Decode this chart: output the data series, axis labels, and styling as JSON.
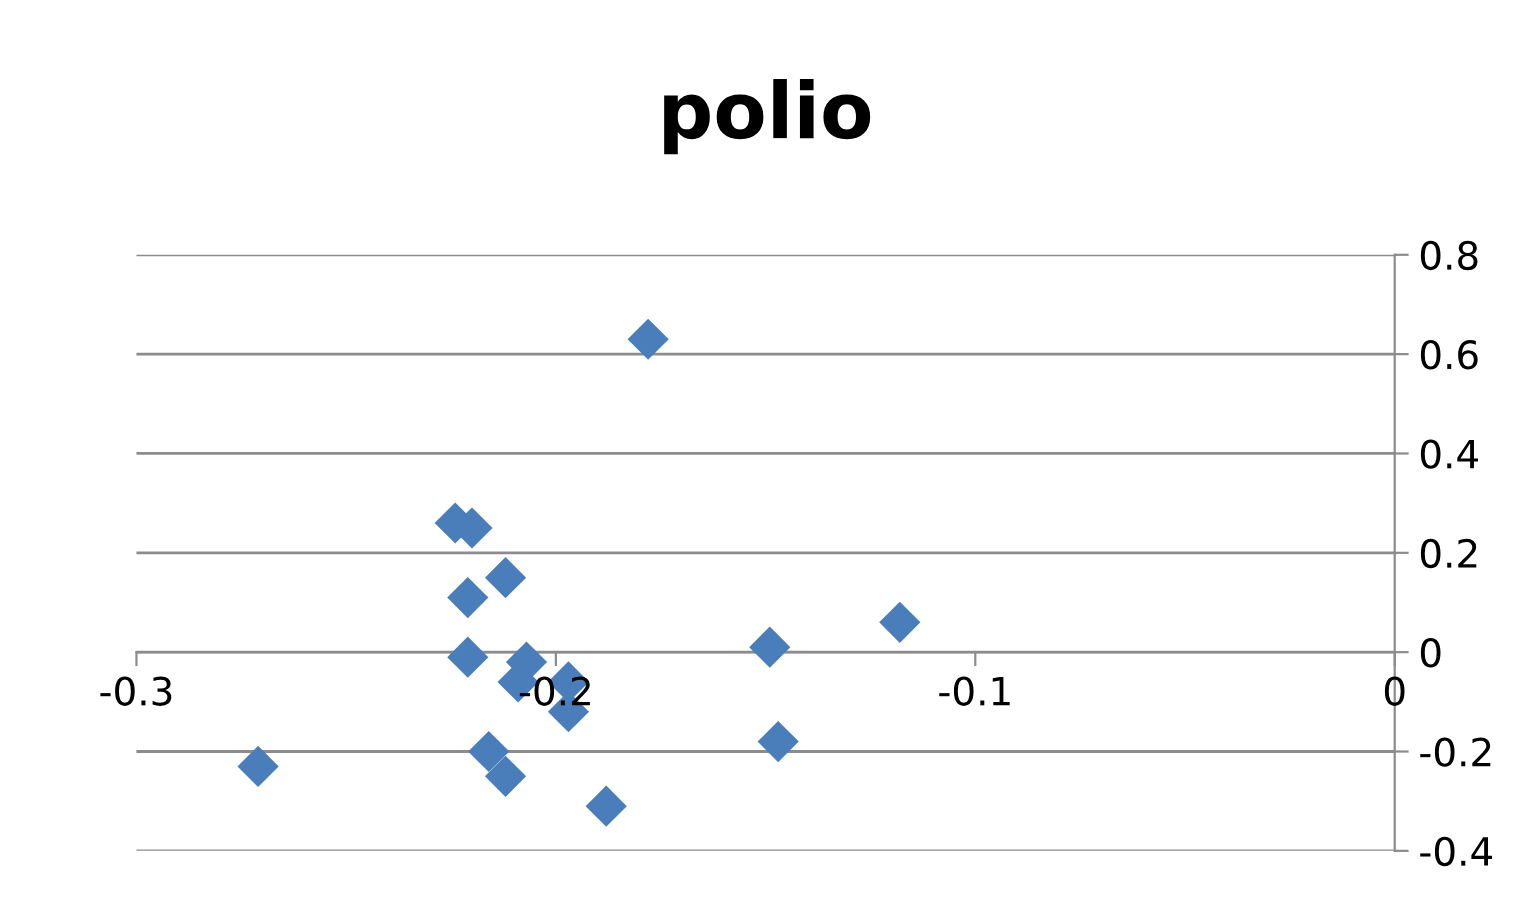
{
  "chart_data": {
    "type": "scatter",
    "title": "polio",
    "x": [
      -0.271,
      -0.178,
      -0.224,
      -0.22,
      -0.221,
      -0.212,
      -0.221,
      -0.207,
      -0.209,
      -0.197,
      -0.197,
      -0.216,
      -0.212,
      -0.188,
      -0.149,
      -0.147,
      -0.118
    ],
    "values": [
      -0.23,
      0.63,
      0.26,
      0.25,
      0.11,
      0.15,
      -0.01,
      -0.02,
      -0.06,
      -0.06,
      -0.12,
      -0.2,
      -0.25,
      -0.31,
      0.01,
      -0.18,
      0.06
    ],
    "color": "#4a7ebb",
    "marker": "diamond",
    "xlim": [
      -0.3,
      0
    ],
    "xticks": [
      -0.3,
      -0.2,
      -0.1,
      0
    ],
    "ylim": [
      -0.4,
      0.8
    ],
    "yticks": [
      -0.4,
      -0.2,
      0,
      0.2,
      0.4,
      0.6,
      0.8
    ],
    "grid": "y",
    "legend": false
  }
}
